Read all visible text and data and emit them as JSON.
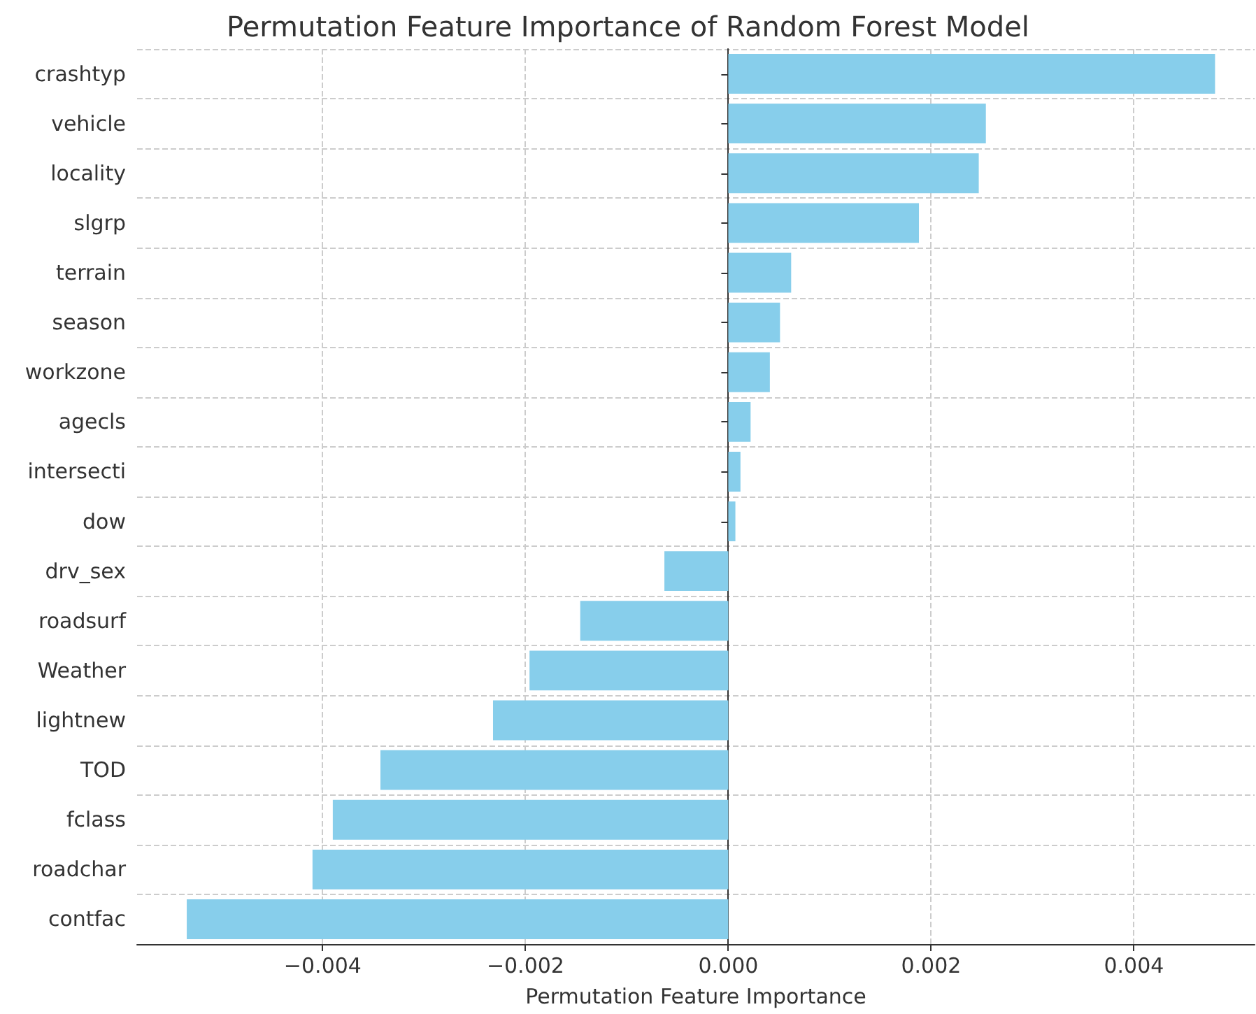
{
  "chart_data": {
    "type": "bar",
    "orientation": "horizontal",
    "title": "Permutation Feature Importance of Random Forest Model",
    "xlabel": "Permutation Feature Importance",
    "categories": [
      "crashtyp",
      "vehicle",
      "locality",
      "slgrp",
      "terrain",
      "season",
      "workzone",
      "agecls",
      "intersecti",
      "dow",
      "drv_sex",
      "roadsurf",
      "Weather",
      "lightnew",
      "TOD",
      "fclass",
      "roadchar",
      "contfac"
    ],
    "values": [
      0.0048,
      0.00254,
      0.00247,
      0.00188,
      0.00062,
      0.00051,
      0.00041,
      0.00022,
      0.00012,
      7e-05,
      -0.00063,
      -0.00146,
      -0.00196,
      -0.00232,
      -0.00343,
      -0.0039,
      -0.0041,
      -0.00534
    ],
    "color": "#87ceeb",
    "xlim": [
      -0.00583,
      0.00519
    ],
    "xticks": [
      {
        "value": -0.004,
        "label": "−0.004"
      },
      {
        "value": -0.002,
        "label": "−0.002"
      },
      {
        "value": 0,
        "label": "0.000"
      },
      {
        "value": 0.002,
        "label": "0.002"
      },
      {
        "value": 0.004,
        "label": "0.004"
      }
    ],
    "grid": true
  }
}
